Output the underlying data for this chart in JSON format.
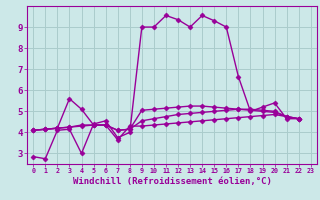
{
  "bg_color": "#cce8e8",
  "grid_color": "#aacccc",
  "line_color": "#990099",
  "marker": "D",
  "markersize": 2.5,
  "linewidth": 1.0,
  "xlabel": "Windchill (Refroidissement éolien,°C)",
  "xlabel_fontsize": 6.5,
  "xlim": [
    -0.5,
    23.5
  ],
  "ylim": [
    2.5,
    10.0
  ],
  "xtick_labels": [
    "0",
    "1",
    "2",
    "3",
    "4",
    "5",
    "6",
    "7",
    "8",
    "9",
    "10",
    "11",
    "12",
    "13",
    "14",
    "15",
    "16",
    "17",
    "18",
    "19",
    "20",
    "21",
    "22",
    "23"
  ],
  "ytick_vals": [
    3,
    4,
    5,
    6,
    7,
    8,
    9
  ],
  "series": [
    [
      2.85,
      2.75,
      4.1,
      4.15,
      3.0,
      4.4,
      4.55,
      3.75,
      4.0,
      9.0,
      9.0,
      9.55,
      9.35,
      9.0,
      9.55,
      9.3,
      9.0,
      6.65,
      5.0,
      5.2,
      5.4,
      4.65,
      4.65
    ],
    [
      4.1,
      4.15,
      4.2,
      5.6,
      5.1,
      4.35,
      4.35,
      4.1,
      4.15,
      5.05,
      5.1,
      5.15,
      5.2,
      5.25,
      5.25,
      5.2,
      5.15,
      5.1,
      5.05,
      5.0,
      4.95,
      4.75,
      4.65
    ],
    [
      4.1,
      4.15,
      4.2,
      4.25,
      4.3,
      4.35,
      4.35,
      4.1,
      4.15,
      4.55,
      4.65,
      4.75,
      4.85,
      4.9,
      4.95,
      5.0,
      5.05,
      5.1,
      5.1,
      5.05,
      5.0,
      4.75,
      4.65
    ],
    [
      4.1,
      4.15,
      4.2,
      4.25,
      4.35,
      4.35,
      4.35,
      3.65,
      4.3,
      4.3,
      4.35,
      4.4,
      4.45,
      4.5,
      4.55,
      4.6,
      4.65,
      4.7,
      4.75,
      4.8,
      4.85,
      4.75,
      4.65
    ]
  ],
  "x_vals": [
    0,
    1,
    2,
    3,
    4,
    5,
    6,
    7,
    8,
    9,
    10,
    11,
    12,
    13,
    14,
    15,
    16,
    17,
    18,
    19,
    20,
    21,
    22
  ]
}
